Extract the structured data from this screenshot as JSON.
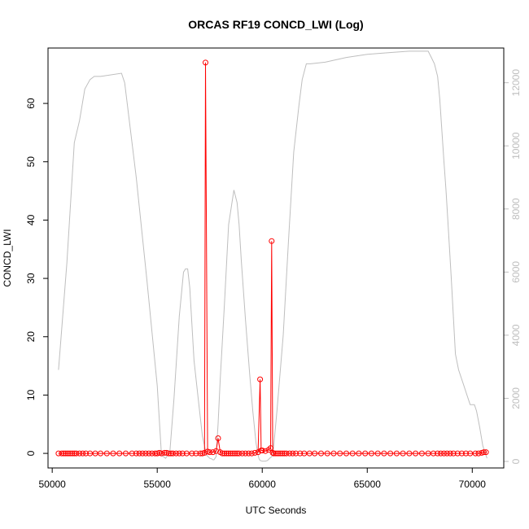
{
  "chart_data": {
    "type": "line",
    "title": "ORCAS RF19 CONCD_LWI (Log)",
    "xlabel": "UTC Seconds",
    "ylabel": "CONCD_LWI",
    "xlim": [
      49800,
      71500
    ],
    "ylim": [
      -2.5,
      69.5
    ],
    "y2lim": [
      -207,
      13100
    ],
    "x_ticks": [
      50000,
      55000,
      60000,
      65000,
      70000
    ],
    "y_ticks": [
      0,
      10,
      20,
      30,
      40,
      50,
      60
    ],
    "y2_ticks": [
      0,
      2000,
      4000,
      6000,
      8000,
      10000,
      12000
    ],
    "grid": false,
    "legend": "none",
    "colors": {
      "concd": "#ff0000",
      "altitude": "#bebebe",
      "axes": "#000000"
    },
    "series": [
      {
        "axis": "left",
        "style": "line+points",
        "x": [
          50300,
          50450,
          50550,
          50650,
          50750,
          50850,
          50950,
          51050,
          51150,
          51300,
          51450,
          51600,
          51800,
          52050,
          52300,
          52600,
          52900,
          53200,
          53500,
          53800,
          54000,
          54150,
          54300,
          54450,
          54600,
          54750,
          54900,
          55000,
          55100,
          55200,
          55350,
          55450,
          55550,
          55650,
          55750,
          55900,
          56050,
          56200,
          56400,
          56650,
          56850,
          57050,
          57150,
          57250,
          57300,
          57400,
          57500,
          57650,
          57800,
          57900,
          58000,
          58100,
          58200,
          58300,
          58400,
          58500,
          58600,
          58700,
          58800,
          58900,
          59050,
          59200,
          59350,
          59500,
          59650,
          59800,
          59900,
          59950,
          60000,
          60150,
          60300,
          60400,
          60450,
          60500,
          60550,
          60650,
          60750,
          60850,
          60950,
          61050,
          61150,
          61300,
          61450,
          61600,
          61800,
          62000,
          62250,
          62500,
          62800,
          63100,
          63400,
          63700,
          64000,
          64300,
          64600,
          64900,
          65200,
          65500,
          65800,
          66100,
          66400,
          66700,
          67000,
          67300,
          67600,
          67900,
          68150,
          68350,
          68500,
          68650,
          68800,
          68950,
          69100,
          69300,
          69500,
          69700,
          69900,
          70150,
          70300,
          70450,
          70550,
          70650
        ],
        "y": [
          0,
          0,
          0,
          0,
          0,
          0,
          0,
          0,
          0,
          0,
          0,
          0,
          0,
          0,
          0,
          0,
          0,
          0,
          0,
          0,
          0,
          0,
          0,
          0,
          0,
          0,
          0,
          0,
          0.1,
          0,
          0.1,
          0.1,
          0,
          0,
          0,
          0,
          0,
          0,
          0,
          0,
          0,
          0,
          0,
          0.1,
          67,
          0.3,
          0.2,
          0.2,
          0.4,
          2.6,
          0.2,
          0,
          0,
          0,
          0,
          0,
          0,
          0,
          0,
          0,
          0,
          0,
          0,
          0,
          0.1,
          0.2,
          12.7,
          0.5,
          0.5,
          0.4,
          0.6,
          0.9,
          36.4,
          0.1,
          0,
          0,
          0,
          0,
          0,
          0,
          0,
          0,
          0,
          0,
          0,
          0,
          0,
          0,
          0,
          0,
          0,
          0,
          0,
          0,
          0,
          0,
          0,
          0,
          0,
          0,
          0,
          0,
          0,
          0,
          0,
          0,
          0,
          0,
          0,
          0,
          0,
          0,
          0,
          0,
          0,
          0,
          0,
          0,
          0,
          0.1,
          0.2,
          0.2
        ]
      },
      {
        "axis": "right",
        "style": "line",
        "x": [
          50300,
          50700,
          51050,
          51300,
          51550,
          51800,
          52000,
          52300,
          53300,
          53450,
          54000,
          54500,
          55000,
          55200,
          55400,
          55600,
          55800,
          56050,
          56250,
          56350,
          56450,
          56550,
          56750,
          56950,
          57150,
          57350,
          57500,
          57600,
          57650,
          57700,
          57800,
          57900,
          58000,
          58200,
          58400,
          58650,
          58800,
          58900,
          59000,
          59200,
          59400,
          59550,
          59700,
          59800,
          59850,
          59900,
          59950,
          60000,
          60050,
          60150,
          60250,
          60350,
          60450,
          60500,
          60550,
          60700,
          61000,
          61250,
          61500,
          61750,
          61900,
          62100,
          62300,
          63000,
          64000,
          65000,
          66000,
          67000,
          67900,
          68050,
          68200,
          68350,
          68450,
          68550,
          68650,
          68750,
          68850,
          69000,
          69200,
          69350,
          69550,
          69750,
          69900,
          70100,
          70200,
          70350,
          70500,
          70700
        ],
        "y": [
          2900,
          6300,
          10100,
          10800,
          11800,
          12100,
          12200,
          12200,
          12300,
          12000,
          9000,
          5800,
          2400,
          200,
          100,
          300,
          2000,
          4600,
          6000,
          6100,
          6100,
          5500,
          3200,
          2000,
          800,
          200,
          100,
          80,
          50,
          50,
          150,
          1200,
          2600,
          5000,
          7500,
          8600,
          8200,
          7500,
          6400,
          4500,
          2800,
          1600,
          600,
          200,
          80,
          30,
          20,
          10,
          10,
          10,
          30,
          100,
          150,
          200,
          500,
          1600,
          4000,
          7000,
          9800,
          11300,
          12100,
          12600,
          12600,
          12650,
          12800,
          12900,
          12950,
          13000,
          13000,
          12800,
          12600,
          12200,
          11500,
          10500,
          9500,
          8600,
          7500,
          5800,
          3400,
          2900,
          2500,
          2100,
          1800,
          1800,
          1600,
          1100,
          500,
          100
        ]
      }
    ]
  }
}
